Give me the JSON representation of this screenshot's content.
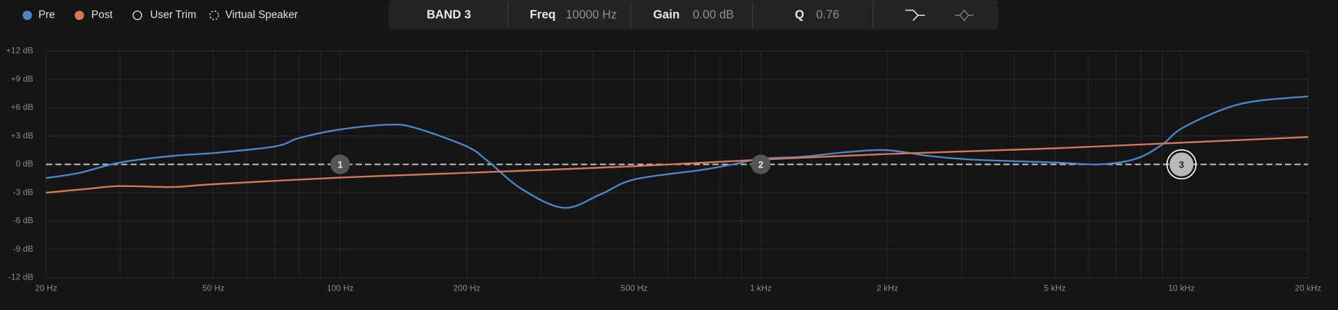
{
  "toolbar": {
    "band": "BAND 3",
    "freq_label": "Freq",
    "freq_value": "10000 Hz",
    "gain_label": "Gain",
    "gain_value": "0.00 dB",
    "q_label": "Q",
    "q_value": "0.76"
  },
  "toggles": [
    "User Trim",
    "Virtual Speaker"
  ],
  "chart_data": {
    "type": "line",
    "xscale": "log",
    "grid": true,
    "xlim": [
      20,
      20000
    ],
    "ylim": [
      -12,
      12
    ],
    "xticks": [
      {
        "value": 20,
        "label": "20 Hz"
      },
      {
        "value": 50,
        "label": "50 Hz"
      },
      {
        "value": 100,
        "label": "100 Hz"
      },
      {
        "value": 200,
        "label": "200 Hz"
      },
      {
        "value": 500,
        "label": "500 Hz"
      },
      {
        "value": 1000,
        "label": "1 kHz"
      },
      {
        "value": 2000,
        "label": "2 kHz"
      },
      {
        "value": 5000,
        "label": "5 kHz"
      },
      {
        "value": 10000,
        "label": "10 kHz"
      },
      {
        "value": 20000,
        "label": "20 kHz"
      }
    ],
    "xgrid": [
      20,
      30,
      40,
      50,
      60,
      70,
      80,
      90,
      100,
      200,
      300,
      400,
      500,
      600,
      700,
      800,
      900,
      1000,
      2000,
      3000,
      4000,
      5000,
      6000,
      7000,
      8000,
      9000,
      10000,
      20000
    ],
    "yticks": [
      {
        "value": 12,
        "label": "+12 dB"
      },
      {
        "value": 9,
        "label": "+9 dB"
      },
      {
        "value": 6,
        "label": "+6 dB"
      },
      {
        "value": 3,
        "label": "+3 dB"
      },
      {
        "value": 0,
        "label": "0 dB"
      },
      {
        "value": -3,
        "label": "-3 dB"
      },
      {
        "value": -6,
        "label": "-6 dB"
      },
      {
        "value": -9,
        "label": "-9 dB"
      },
      {
        "value": -12,
        "label": "-12 dB"
      }
    ],
    "series": [
      {
        "name": "Pre",
        "color": "#4a86c8",
        "x": [
          20,
          24,
          30,
          40,
          50,
          70,
          80,
          100,
          130,
          150,
          200,
          225,
          270,
          340,
          415,
          500,
          720,
          860,
          1000,
          1250,
          1600,
          2000,
          2500,
          3200,
          5000,
          6400,
          7800,
          9000,
          10000,
          12500,
          15000,
          20000
        ],
        "values": [
          -1.45,
          -0.9,
          0.2,
          0.9,
          1.2,
          1.9,
          2.8,
          3.7,
          4.2,
          3.9,
          1.9,
          0.3,
          -2.6,
          -4.6,
          -3.2,
          -1.6,
          -0.6,
          0,
          0.6,
          0.8,
          1.3,
          1.5,
          0.9,
          0.5,
          0.2,
          0,
          0.6,
          2.1,
          3.8,
          5.8,
          6.7,
          7.2
        ]
      },
      {
        "name": "Post",
        "color": "#d4785a",
        "x": [
          20,
          25,
          30,
          40,
          50,
          100,
          200,
          500,
          1000,
          2000,
          5000,
          10000,
          20000
        ],
        "values": [
          -3.0,
          -2.6,
          -2.3,
          -2.4,
          -2.1,
          -1.4,
          -0.9,
          -0.2,
          0.5,
          1.1,
          1.7,
          2.3,
          2.9
        ]
      }
    ],
    "bands": [
      {
        "label": "1",
        "freq": 100,
        "gain": 0,
        "selected": false
      },
      {
        "label": "2",
        "freq": 1000,
        "gain": 0,
        "selected": false
      },
      {
        "label": "3",
        "freq": 10000,
        "gain": 0,
        "selected": true
      }
    ]
  }
}
